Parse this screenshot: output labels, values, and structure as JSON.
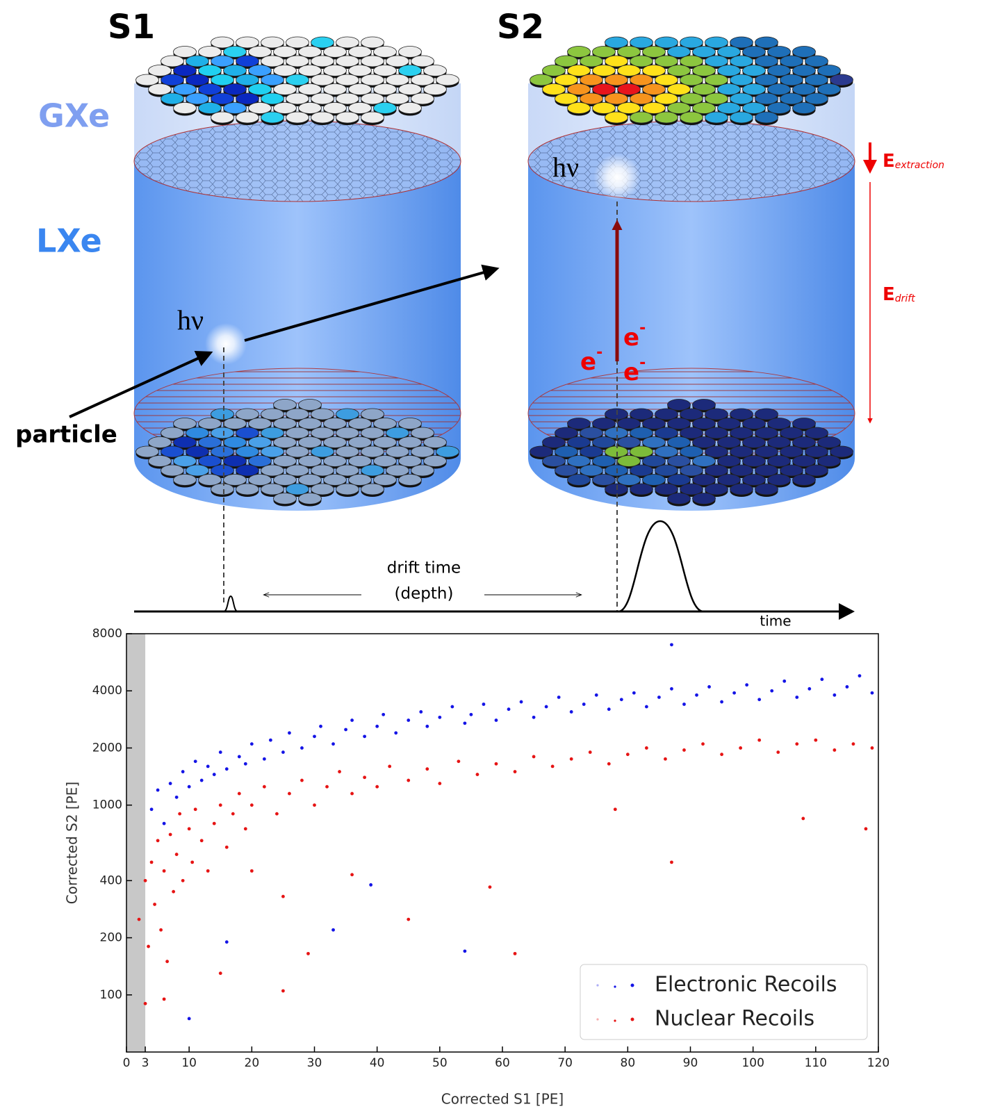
{
  "diagram": {
    "left_title": "S1",
    "right_title": "S2",
    "gas_label": "GXe",
    "liquid_label": "LXe",
    "photon_label_left": "hν",
    "photon_label_right": "hν",
    "particle_label": "particle",
    "extraction_field": {
      "base": "E",
      "sub": "extraction"
    },
    "drift_field": {
      "base": "E",
      "sub": "drift"
    },
    "electrons": [
      {
        "base": "e",
        "sup": "-"
      },
      {
        "base": "e",
        "sup": "-"
      },
      {
        "base": "e",
        "sup": "-"
      }
    ],
    "drift_time_label": [
      "drift time",
      "(depth)"
    ],
    "time_label": "time"
  },
  "chart_data": {
    "type": "scatter",
    "x_label": "Corrected S1 [PE]",
    "y_label": "Corrected S2 [PE]",
    "xlim": [
      0,
      120
    ],
    "xticks": [
      0,
      3,
      10,
      20,
      30,
      40,
      50,
      60,
      70,
      80,
      90,
      100,
      110,
      120
    ],
    "ylim": [
      50,
      8000
    ],
    "yticks": [
      100,
      200,
      400,
      1000,
      2000,
      4000,
      8000
    ],
    "y_scale": "log",
    "shaded_xrange": [
      0,
      3
    ],
    "legend": "lower right",
    "series": [
      {
        "name": "Electronic Recoils",
        "color": "#1414e6",
        "x": [
          4,
          5,
          6,
          7,
          8,
          9,
          10,
          11,
          12,
          13,
          14,
          15,
          16,
          18,
          19,
          20,
          22,
          23,
          25,
          26,
          28,
          30,
          31,
          33,
          35,
          36,
          38,
          40,
          41,
          43,
          45,
          47,
          48,
          50,
          52,
          54,
          55,
          57,
          59,
          61,
          63,
          65,
          67,
          69,
          71,
          73,
          75,
          77,
          79,
          81,
          83,
          85,
          87,
          89,
          91,
          93,
          95,
          97,
          99,
          101,
          103,
          105,
          107,
          109,
          111,
          113,
          115,
          117,
          119,
          10,
          54,
          33,
          39,
          16,
          87
        ],
        "values": [
          950,
          1200,
          800,
          1300,
          1100,
          1500,
          1250,
          1700,
          1350,
          1600,
          1450,
          1900,
          1550,
          1800,
          1650,
          2100,
          1750,
          2200,
          1900,
          2400,
          2000,
          2300,
          2600,
          2100,
          2500,
          2800,
          2300,
          2600,
          3000,
          2400,
          2800,
          3100,
          2600,
          2900,
          3300,
          2700,
          3000,
          3400,
          2800,
          3200,
          3500,
          2900,
          3300,
          3700,
          3100,
          3400,
          3800,
          3200,
          3600,
          3900,
          3300,
          3700,
          4100,
          3400,
          3800,
          4200,
          3500,
          3900,
          4300,
          3600,
          4000,
          4500,
          3700,
          4100,
          4600,
          3800,
          4200,
          4800,
          3900,
          75,
          170,
          220,
          380,
          190,
          7000
        ]
      },
      {
        "name": "Nuclear Recoils",
        "color": "#e61414",
        "x": [
          2,
          3,
          3.5,
          4,
          4.5,
          5,
          5.5,
          6,
          6.5,
          7,
          7.5,
          8,
          8.5,
          9,
          10,
          10.5,
          11,
          12,
          13,
          14,
          15,
          16,
          17,
          18,
          19,
          20,
          22,
          24,
          26,
          28,
          30,
          32,
          34,
          36,
          38,
          40,
          42,
          45,
          48,
          50,
          53,
          56,
          59,
          62,
          65,
          68,
          71,
          74,
          77,
          80,
          83,
          86,
          89,
          92,
          95,
          98,
          101,
          104,
          107,
          110,
          113,
          116,
          119,
          20,
          25,
          29,
          36,
          45,
          58,
          62,
          78,
          87,
          108,
          118,
          25,
          3,
          6,
          15
        ],
        "values": [
          250,
          400,
          180,
          500,
          300,
          650,
          220,
          450,
          150,
          700,
          350,
          550,
          900,
          400,
          750,
          500,
          950,
          650,
          450,
          800,
          1000,
          600,
          900,
          1150,
          750,
          1000,
          1250,
          900,
          1150,
          1350,
          1000,
          1250,
          1500,
          1150,
          1400,
          1250,
          1600,
          1350,
          1550,
          1300,
          1700,
          1450,
          1650,
          1500,
          1800,
          1600,
          1750,
          1900,
          1650,
          1850,
          2000,
          1750,
          1950,
          2100,
          1850,
          2000,
          2200,
          1900,
          2100,
          2200,
          1950,
          2100,
          2000,
          450,
          330,
          165,
          430,
          250,
          370,
          165,
          950,
          500,
          850,
          750,
          105,
          90,
          95,
          130
        ]
      }
    ]
  }
}
